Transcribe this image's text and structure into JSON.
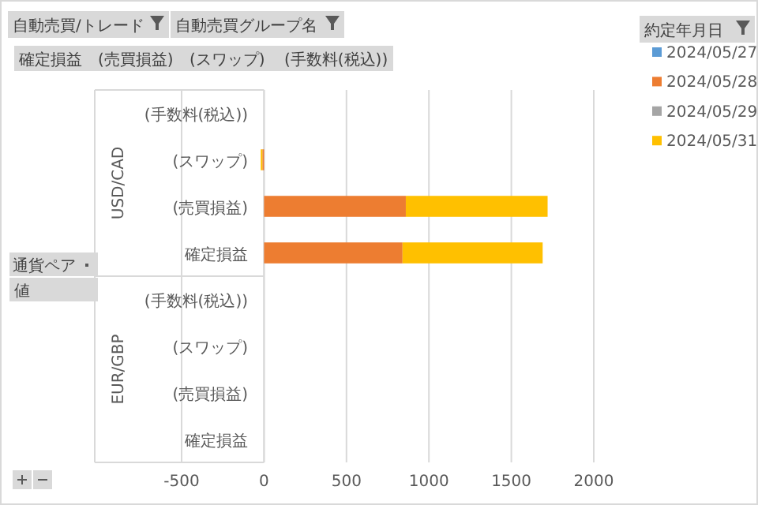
{
  "chart_data": {
    "type": "bar",
    "orientation": "horizontal",
    "stacked": true,
    "categories": [
      "(手数料(税込))",
      "(スワップ)",
      "(売買損益)",
      "確定損益",
      "(手数料(税込))",
      "(スワップ)",
      "(売買損益)",
      "確定損益"
    ],
    "series": [
      {
        "name": "2024/05/27",
        "color": "#5b9bd5",
        "values": [
          null,
          null,
          null,
          null,
          null,
          null,
          null,
          null
        ]
      },
      {
        "name": "2024/05/28",
        "color": "#ed7d31",
        "values": [
          null,
          -10,
          860,
          840,
          null,
          null,
          null,
          null
        ]
      },
      {
        "name": "2024/05/29",
        "color": "#a5a5a5",
        "values": [
          null,
          null,
          null,
          null,
          null,
          null,
          null,
          null
        ]
      },
      {
        "name": "2024/05/31",
        "color": "#ffc000",
        "values": [
          null,
          -10,
          860,
          850,
          null,
          null,
          null,
          null
        ]
      }
    ],
    "xlim": [
      -500,
      2000
    ],
    "xticks": [
      -500,
      0,
      500,
      1000,
      1500,
      2000
    ],
    "grid": "x",
    "legend": "right",
    "legend_title": "約定年月日",
    "annotations": [
      "自動売買/トレード",
      "自動売買グループ名",
      "確定損益",
      "(売買損益)",
      "(スワップ)",
      "(手数料(税込))",
      "通貨ペア",
      "値",
      "USD/CAD",
      "EUR/GBP"
    ]
  }
}
